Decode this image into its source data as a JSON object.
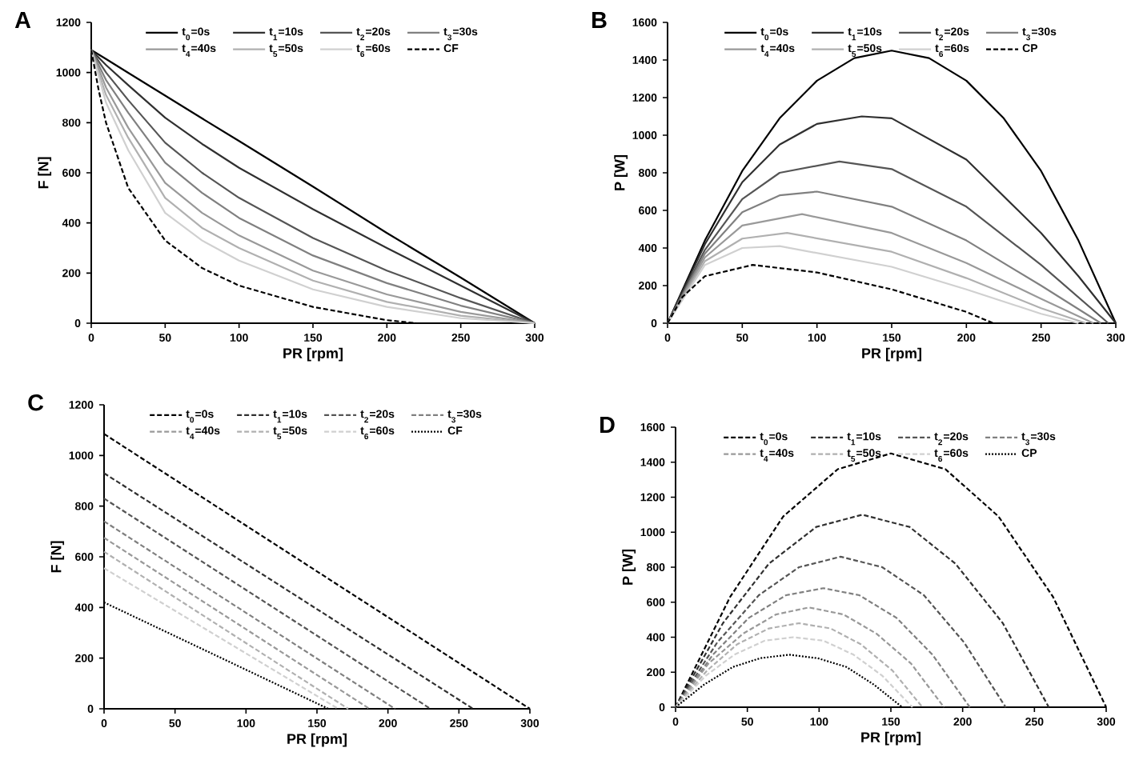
{
  "chart_data": [
    {
      "type": "line",
      "title": "A",
      "xlabel": "PR [rpm]",
      "ylabel": "F [N]",
      "xlim": [
        0,
        300
      ],
      "ylim": [
        0,
        1200
      ],
      "xticks": [
        0,
        50,
        100,
        150,
        200,
        250,
        300
      ],
      "yticks": [
        0,
        200,
        400,
        600,
        800,
        1000,
        1200
      ],
      "legend": "top",
      "series": [
        {
          "name": "t$_{0}$=0s",
          "color": "#000000",
          "line_style": "solid",
          "x": [
            0,
            10,
            25,
            50,
            75,
            100,
            150,
            200,
            250,
            300
          ],
          "values": [
            1090,
            1054,
            999,
            908,
            817,
            727,
            545,
            360,
            182,
            0
          ]
        },
        {
          "name": "t$_{1}$=10s",
          "color": "#303030",
          "line_style": "solid",
          "x": [
            0,
            10,
            25,
            50,
            75,
            100,
            150,
            200,
            250,
            300
          ],
          "values": [
            1090,
            1030,
            950,
            820,
            715,
            620,
            455,
            300,
            150,
            0
          ]
        },
        {
          "name": "t$_{2}$=20s",
          "color": "#555555",
          "line_style": "solid",
          "x": [
            0,
            10,
            25,
            50,
            75,
            100,
            150,
            200,
            250,
            300
          ],
          "values": [
            1090,
            1000,
            890,
            720,
            600,
            500,
            340,
            210,
            100,
            0
          ]
        },
        {
          "name": "t$_{3}$=30s",
          "color": "#808080",
          "line_style": "solid",
          "x": [
            0,
            10,
            25,
            50,
            75,
            100,
            150,
            200,
            250,
            300
          ],
          "values": [
            1090,
            970,
            840,
            640,
            520,
            420,
            270,
            160,
            70,
            0
          ]
        },
        {
          "name": "t$_{4}$=40s",
          "color": "#999999",
          "line_style": "solid",
          "x": [
            0,
            10,
            25,
            50,
            75,
            100,
            150,
            200,
            250,
            300
          ],
          "values": [
            1090,
            940,
            780,
            560,
            440,
            350,
            210,
            115,
            45,
            0
          ]
        },
        {
          "name": "t$_{5}$=50s",
          "color": "#b0b0b0",
          "line_style": "solid",
          "x": [
            0,
            10,
            25,
            50,
            75,
            100,
            150,
            200,
            250,
            300
          ],
          "values": [
            1090,
            910,
            740,
            500,
            380,
            300,
            170,
            85,
            30,
            0
          ]
        },
        {
          "name": "t$_{6}$=60s",
          "color": "#d0d0d0",
          "line_style": "solid",
          "x": [
            0,
            10,
            25,
            50,
            75,
            100,
            150,
            200,
            250,
            300
          ],
          "values": [
            1090,
            880,
            690,
            440,
            330,
            250,
            135,
            65,
            20,
            0
          ]
        },
        {
          "name": "CF",
          "color": "#000000",
          "line_style": "dashed",
          "x": [
            0,
            5,
            10,
            25,
            50,
            75,
            100,
            150,
            200,
            220
          ],
          "values": [
            1090,
            930,
            800,
            540,
            330,
            220,
            150,
            65,
            12,
            0
          ]
        }
      ]
    },
    {
      "type": "line",
      "title": "B",
      "xlabel": "PR [rpm]",
      "ylabel": "P [W]",
      "xlim": [
        0,
        300
      ],
      "ylim": [
        0,
        1600
      ],
      "xticks": [
        0,
        50,
        100,
        150,
        200,
        250,
        300
      ],
      "yticks": [
        0,
        200,
        400,
        600,
        800,
        1000,
        1200,
        1400,
        1600
      ],
      "legend": "top",
      "series": [
        {
          "name": "t$_{0}$=0s",
          "color": "#000000",
          "line_style": "solid",
          "x": [
            0,
            25,
            50,
            75,
            100,
            125,
            150,
            175,
            200,
            225,
            250,
            275,
            300
          ],
          "values": [
            0,
            440,
            810,
            1090,
            1290,
            1410,
            1450,
            1410,
            1290,
            1090,
            810,
            440,
            0
          ]
        },
        {
          "name": "t$_{1}$=10s",
          "color": "#303030",
          "line_style": "solid",
          "x": [
            0,
            25,
            50,
            75,
            100,
            130,
            150,
            200,
            250,
            275,
            300
          ],
          "values": [
            0,
            420,
            750,
            950,
            1060,
            1100,
            1090,
            870,
            480,
            250,
            0
          ]
        },
        {
          "name": "t$_{2}$=20s",
          "color": "#555555",
          "line_style": "solid",
          "x": [
            0,
            25,
            50,
            75,
            115,
            150,
            200,
            250,
            295
          ],
          "values": [
            0,
            390,
            660,
            800,
            860,
            820,
            620,
            310,
            0
          ]
        },
        {
          "name": "t$_{3}$=30s",
          "color": "#808080",
          "line_style": "solid",
          "x": [
            0,
            25,
            50,
            75,
            100,
            150,
            200,
            250,
            290
          ],
          "values": [
            0,
            370,
            590,
            680,
            700,
            620,
            440,
            200,
            0
          ]
        },
        {
          "name": "t$_{4}$=40s",
          "color": "#999999",
          "line_style": "solid",
          "x": [
            0,
            25,
            50,
            90,
            150,
            200,
            250,
            285
          ],
          "values": [
            0,
            350,
            520,
            580,
            480,
            320,
            130,
            0
          ]
        },
        {
          "name": "t$_{5}$=50s",
          "color": "#b0b0b0",
          "line_style": "solid",
          "x": [
            0,
            25,
            50,
            80,
            150,
            200,
            250,
            280
          ],
          "values": [
            0,
            330,
            450,
            480,
            380,
            240,
            80,
            0
          ]
        },
        {
          "name": "t$_{6}$=60s",
          "color": "#d0d0d0",
          "line_style": "solid",
          "x": [
            0,
            25,
            50,
            75,
            150,
            200,
            250,
            275
          ],
          "values": [
            0,
            310,
            400,
            410,
            300,
            180,
            50,
            0
          ]
        },
        {
          "name": "CP",
          "color": "#000000",
          "line_style": "dashed",
          "x": [
            0,
            10,
            25,
            57,
            100,
            150,
            200,
            218
          ],
          "values": [
            0,
            140,
            250,
            310,
            270,
            180,
            60,
            0
          ]
        }
      ]
    },
    {
      "type": "line",
      "title": "C",
      "xlabel": "PR [rpm]",
      "ylabel": "F [N]",
      "xlim": [
        0,
        300
      ],
      "ylim": [
        0,
        1200
      ],
      "xticks": [
        0,
        50,
        100,
        150,
        200,
        250,
        300
      ],
      "yticks": [
        0,
        200,
        400,
        600,
        800,
        1000,
        1200
      ],
      "legend": "top",
      "series": [
        {
          "name": "t$_{0}$=0s",
          "color": "#000000",
          "line_style": "dashed",
          "x": [
            0,
            300
          ],
          "values": [
            1085,
            0
          ]
        },
        {
          "name": "t$_{1}$=10s",
          "color": "#303030",
          "line_style": "dashed",
          "x": [
            0,
            260
          ],
          "values": [
            930,
            0
          ]
        },
        {
          "name": "t$_{2}$=20s",
          "color": "#555555",
          "line_style": "dashed",
          "x": [
            0,
            230
          ],
          "values": [
            830,
            0
          ]
        },
        {
          "name": "t$_{3}$=30s",
          "color": "#808080",
          "line_style": "dashed",
          "x": [
            0,
            205
          ],
          "values": [
            740,
            0
          ]
        },
        {
          "name": "t$_{4}$=40s",
          "color": "#999999",
          "line_style": "dashed",
          "x": [
            0,
            187
          ],
          "values": [
            675,
            0
          ]
        },
        {
          "name": "t$_{5}$=50s",
          "color": "#b0b0b0",
          "line_style": "dashed",
          "x": [
            0,
            172
          ],
          "values": [
            620,
            0
          ]
        },
        {
          "name": "t$_{6}$=60s",
          "color": "#d0d0d0",
          "line_style": "dashed",
          "x": [
            0,
            165
          ],
          "values": [
            555,
            0
          ]
        },
        {
          "name": "CF",
          "color": "#000000",
          "line_style": "dotted",
          "x": [
            0,
            158
          ],
          "values": [
            420,
            0
          ]
        }
      ]
    },
    {
      "type": "line",
      "title": "D",
      "xlabel": "PR [rpm]",
      "ylabel": "P [W]",
      "xlim": [
        0,
        300
      ],
      "ylim": [
        0,
        1600
      ],
      "xticks": [
        0,
        50,
        100,
        150,
        200,
        250,
        300
      ],
      "yticks": [
        0,
        200,
        400,
        600,
        800,
        1000,
        1200,
        1400,
        1600
      ],
      "legend": "top",
      "series": [
        {
          "name": "t$_{0}$=0s",
          "color": "#000000",
          "line_style": "dashed",
          "x": [
            0,
            38,
            75,
            113,
            150,
            188,
            225,
            263,
            300
          ],
          "values": [
            0,
            630,
            1090,
            1360,
            1450,
            1360,
            1090,
            630,
            0
          ]
        },
        {
          "name": "t$_{1}$=10s",
          "color": "#303030",
          "line_style": "dashed",
          "x": [
            0,
            33,
            65,
            98,
            130,
            163,
            195,
            228,
            260
          ],
          "values": [
            0,
            480,
            820,
            1030,
            1100,
            1030,
            820,
            480,
            0
          ]
        },
        {
          "name": "t$_{2}$=20s",
          "color": "#555555",
          "line_style": "dashed",
          "x": [
            0,
            29,
            58,
            86,
            115,
            144,
            173,
            201,
            230
          ],
          "values": [
            0,
            370,
            640,
            800,
            860,
            800,
            640,
            370,
            0
          ]
        },
        {
          "name": "t$_{3}$=30s",
          "color": "#808080",
          "line_style": "dashed",
          "x": [
            0,
            26,
            51,
            77,
            103,
            128,
            154,
            179,
            205
          ],
          "values": [
            0,
            300,
            510,
            640,
            680,
            640,
            510,
            300,
            0
          ]
        },
        {
          "name": "t$_{4}$=40s",
          "color": "#999999",
          "line_style": "dashed",
          "x": [
            0,
            23,
            47,
            70,
            93,
            117,
            140,
            164,
            187
          ],
          "values": [
            0,
            250,
            420,
            530,
            570,
            530,
            420,
            250,
            0
          ]
        },
        {
          "name": "t$_{5}$=50s",
          "color": "#b0b0b0",
          "line_style": "dashed",
          "x": [
            0,
            22,
            43,
            65,
            86,
            108,
            129,
            151,
            172
          ],
          "values": [
            0,
            210,
            360,
            450,
            480,
            450,
            360,
            210,
            0
          ]
        },
        {
          "name": "t$_{6}$=60s",
          "color": "#d0d0d0",
          "line_style": "dashed",
          "x": [
            0,
            21,
            41,
            62,
            82,
            103,
            124,
            144,
            165
          ],
          "values": [
            0,
            180,
            300,
            380,
            400,
            380,
            300,
            180,
            0
          ]
        },
        {
          "name": "CP",
          "color": "#000000",
          "line_style": "dotted",
          "x": [
            0,
            20,
            40,
            59,
            79,
            99,
            119,
            138,
            158
          ],
          "values": [
            0,
            130,
            230,
            280,
            300,
            280,
            230,
            130,
            0
          ]
        }
      ]
    }
  ]
}
